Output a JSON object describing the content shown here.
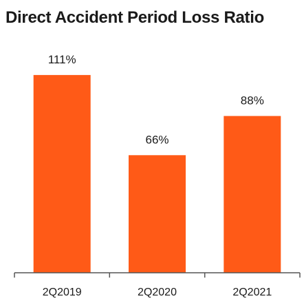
{
  "chart_data": {
    "type": "bar",
    "title": "Direct Accident Period Loss Ratio",
    "categories": [
      "2Q2019",
      "2Q2020",
      "2Q2021"
    ],
    "values": [
      111,
      66,
      88
    ],
    "data_labels": [
      "111%",
      "66%",
      "88%"
    ],
    "unit": "%",
    "ylim": [
      0,
      116
    ],
    "grid": false,
    "legend": "none",
    "colors": {
      "bar": "#ff5a17",
      "axis": "#555555",
      "text": "#1a1a1a"
    }
  }
}
